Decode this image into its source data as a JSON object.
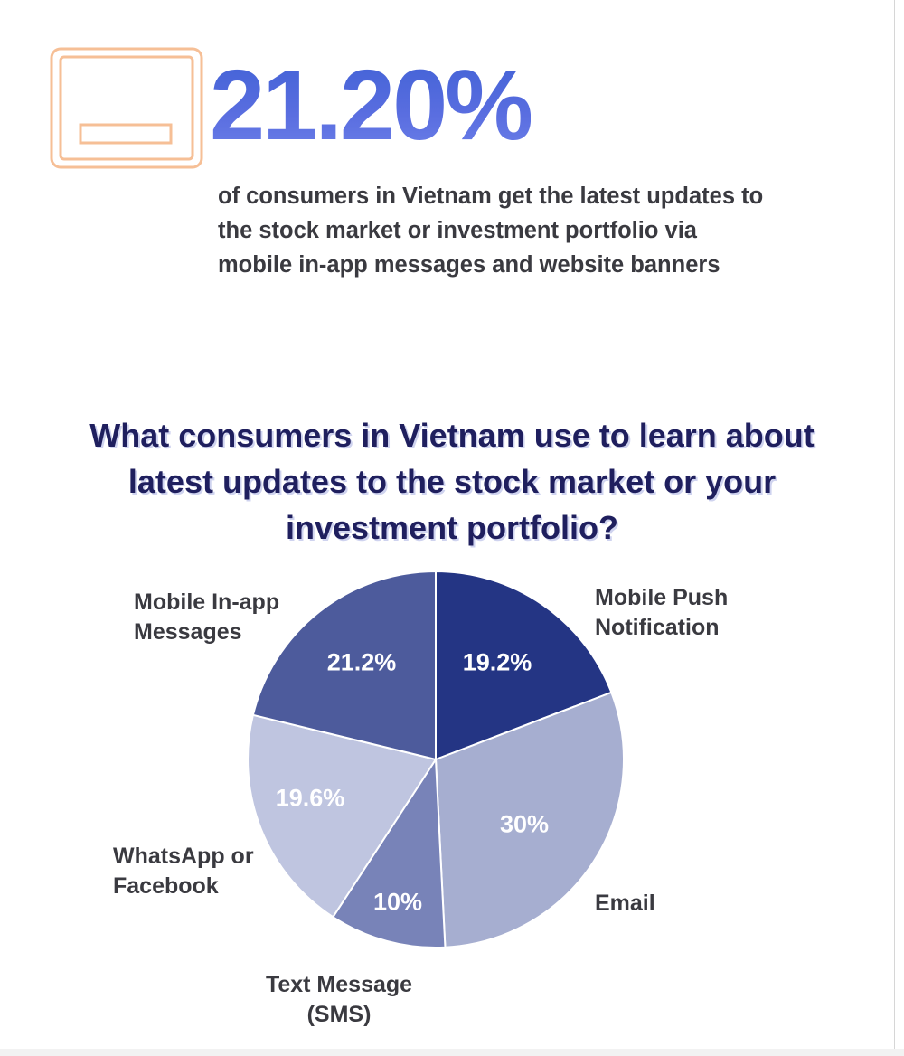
{
  "header": {
    "stat_value": "21.20%",
    "stat_description": "of consumers in Vietnam get the latest updates to the stock market or investment portfolio via mobile in-app messages and website banners",
    "icon": "website-banner-icon",
    "icon_color": "#f6bf96"
  },
  "chart_data": {
    "type": "pie",
    "title": "What consumers in Vietnam use to learn about latest updates to the stock market or your investment portfolio?",
    "categories": [
      "Mobile Push Notification",
      "Email",
      "Text Message (SMS)",
      "WhatsApp or Facebook",
      "Mobile In-app Messages"
    ],
    "values": [
      19.2,
      30,
      10,
      19.6,
      21.2
    ],
    "value_labels": [
      "19.2%",
      "30%",
      "10%",
      "19.6%",
      "21.2%"
    ],
    "colors": [
      "#243584",
      "#a6aed0",
      "#7883b8",
      "#bfc5e0",
      "#4d5b9c"
    ]
  }
}
